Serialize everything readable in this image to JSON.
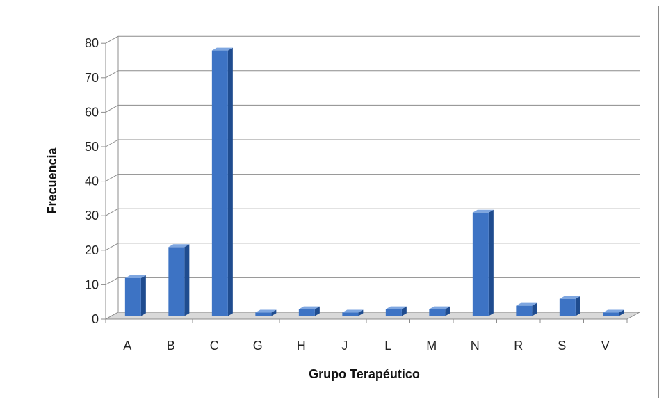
{
  "chart_data": {
    "type": "bar",
    "title": "",
    "xlabel": "Grupo Terapéutico",
    "ylabel": "Frecuencia",
    "categories": [
      "A",
      "B",
      "C",
      "G",
      "H",
      "J",
      "L",
      "M",
      "N",
      "R",
      "S",
      "V"
    ],
    "values": [
      11,
      20,
      77,
      1,
      2,
      1,
      2,
      2,
      30,
      3,
      5,
      1
    ],
    "ylim": [
      0,
      80
    ],
    "yticks": [
      "0",
      "10",
      "20",
      "30",
      "40",
      "50",
      "60",
      "70",
      "80"
    ],
    "grid": true,
    "legend": "none",
    "colors": {
      "bar_front": "#3d73c4",
      "bar_side": "#1f4c8f",
      "bar_top": "#7ea6e0",
      "gridline": "#8c8c8c",
      "floor": "#d9d9d9"
    }
  }
}
